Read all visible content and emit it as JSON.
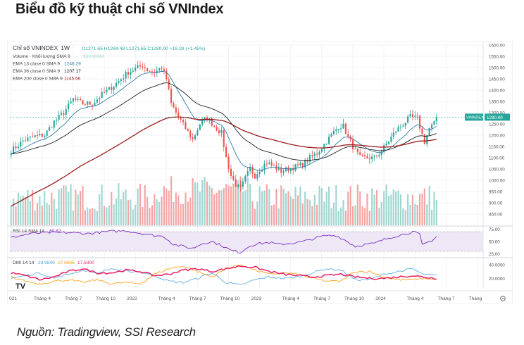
{
  "page": {
    "title": "Biểu đồ kỹ thuật chỉ số VNIndex",
    "source": "Nguồn: Tradingview, SSI Research"
  },
  "colors": {
    "up": "#26a69a",
    "down": "#ef5350",
    "vol_up": "#9fd6cf",
    "vol_down": "#f5a3a3",
    "ema13": "#2e7ba8",
    "ema36": "#222222",
    "ema200": "#9b1b1b",
    "rsi": "#7b2cbf",
    "rsi_band": "#ede7f6",
    "dmi_plus": "#4fa3e0",
    "dmi_minus": "#ff9800",
    "adx": "#e91e63",
    "price_tag": "#26a69a"
  },
  "chart_data": {
    "type": "candlestick",
    "interval": "1W",
    "symbol": "Chỉ số VNINDEX",
    "ohlc_text": "O1271.65 H1284.48 L1271.65 C1280.00 +18.28 (+1.45%)",
    "legend": [
      {
        "label": "Volume · Khối lượng SMA 9",
        "value": "930.906M"
      },
      {
        "label": "EMA 13 close 0 SMA 9",
        "value": "1246.29"
      },
      {
        "label": "EMA 36 close 0 SMA 9",
        "value": "1207.17"
      },
      {
        "label": "EMA 200 close 0 SMA 9",
        "value": "1145.66"
      }
    ],
    "price_axis": {
      "min": 800,
      "max": 1600,
      "ticks": [
        "1600.00",
        "1550.00",
        "1500.00",
        "1450.00",
        "1400.00",
        "1350.00",
        "1300.00",
        "1250.00",
        "1200.00",
        "1150.00",
        "1100.00",
        "1050.00",
        "1000.00",
        "950.00",
        "900.00",
        "850.00"
      ]
    },
    "last_price_label": "VNINDEX",
    "last_price": "1280.00",
    "x_labels": [
      "021",
      "Tháng 4",
      "Tháng 7",
      "Tháng 10",
      "2022",
      "Tháng 4",
      "Tháng 7",
      "Tháng 10",
      "2023",
      "Tháng 4",
      "Tháng 7",
      "Tháng 10",
      "2024",
      "Tháng 4",
      "Tháng 7",
      "Tháng"
    ],
    "x_label_weeks": [
      0,
      13,
      26,
      39,
      52,
      65,
      78,
      91,
      104,
      117,
      130,
      143,
      156,
      169,
      182,
      195
    ],
    "weeks_total": 198,
    "close_anchors": [
      [
        0,
        1130
      ],
      [
        5,
        1175
      ],
      [
        10,
        1195
      ],
      [
        14,
        1200
      ],
      [
        18,
        1260
      ],
      [
        22,
        1300
      ],
      [
        26,
        1360
      ],
      [
        30,
        1340
      ],
      [
        34,
        1340
      ],
      [
        38,
        1380
      ],
      [
        43,
        1420
      ],
      [
        46,
        1450
      ],
      [
        49,
        1480
      ],
      [
        52,
        1495
      ],
      [
        55,
        1510
      ],
      [
        57,
        1490
      ],
      [
        60,
        1480
      ],
      [
        63,
        1500
      ],
      [
        65,
        1450
      ],
      [
        67,
        1340
      ],
      [
        70,
        1280
      ],
      [
        73,
        1230
      ],
      [
        76,
        1180
      ],
      [
        79,
        1250
      ],
      [
        82,
        1280
      ],
      [
        85,
        1240
      ],
      [
        88,
        1210
      ],
      [
        90,
        1100
      ],
      [
        92,
        1020
      ],
      [
        94,
        980
      ],
      [
        96,
        960
      ],
      [
        98,
        1010
      ],
      [
        100,
        1050
      ],
      [
        102,
        1020
      ],
      [
        104,
        1050
      ],
      [
        107,
        1080
      ],
      [
        110,
        1060
      ],
      [
        113,
        1040
      ],
      [
        116,
        1050
      ],
      [
        119,
        1060
      ],
      [
        122,
        1070
      ],
      [
        125,
        1100
      ],
      [
        128,
        1120
      ],
      [
        131,
        1160
      ],
      [
        134,
        1200
      ],
      [
        137,
        1240
      ],
      [
        139,
        1240
      ],
      [
        141,
        1190
      ],
      [
        144,
        1130
      ],
      [
        146,
        1100
      ],
      [
        149,
        1100
      ],
      [
        152,
        1100
      ],
      [
        155,
        1130
      ],
      [
        158,
        1175
      ],
      [
        161,
        1220
      ],
      [
        164,
        1250
      ],
      [
        167,
        1280
      ],
      [
        170,
        1275
      ],
      [
        172,
        1200
      ],
      [
        173,
        1170
      ],
      [
        175,
        1230
      ],
      [
        177,
        1250
      ],
      [
        178,
        1280
      ]
    ],
    "volume_axis": {
      "ticks": []
    },
    "rsi": {
      "label": "RSI 14 SMA 14",
      "value": "60.82",
      "ticks": [
        "75.00",
        "50.00",
        "25.00"
      ],
      "upper": 70,
      "lower": 30,
      "anchors": [
        [
          0,
          58
        ],
        [
          8,
          66
        ],
        [
          16,
          68
        ],
        [
          24,
          68
        ],
        [
          32,
          66
        ],
        [
          40,
          70
        ],
        [
          48,
          72
        ],
        [
          55,
          66
        ],
        [
          60,
          62
        ],
        [
          64,
          60
        ],
        [
          68,
          44
        ],
        [
          72,
          40
        ],
        [
          76,
          36
        ],
        [
          80,
          46
        ],
        [
          84,
          50
        ],
        [
          88,
          42
        ],
        [
          92,
          32
        ],
        [
          96,
          28
        ],
        [
          100,
          42
        ],
        [
          104,
          46
        ],
        [
          108,
          48
        ],
        [
          112,
          44
        ],
        [
          116,
          46
        ],
        [
          120,
          48
        ],
        [
          124,
          52
        ],
        [
          128,
          58
        ],
        [
          132,
          62
        ],
        [
          136,
          62
        ],
        [
          140,
          52
        ],
        [
          144,
          40
        ],
        [
          148,
          44
        ],
        [
          152,
          46
        ],
        [
          156,
          54
        ],
        [
          160,
          60
        ],
        [
          164,
          64
        ],
        [
          168,
          70
        ],
        [
          171,
          64
        ],
        [
          172,
          42
        ],
        [
          174,
          48
        ],
        [
          176,
          52
        ],
        [
          178,
          60
        ]
      ]
    },
    "dmi": {
      "label": "DMI 14 14",
      "values": [
        "23.9849",
        "17.6845",
        "17.6300"
      ],
      "ticks": [
        "40.0000",
        "20.0000"
      ],
      "plus_anchors": [
        [
          0,
          20
        ],
        [
          6,
          24
        ],
        [
          12,
          28
        ],
        [
          18,
          20
        ],
        [
          24,
          26
        ],
        [
          30,
          32
        ],
        [
          36,
          28
        ],
        [
          42,
          34
        ],
        [
          48,
          30
        ],
        [
          54,
          30
        ],
        [
          60,
          24
        ],
        [
          66,
          16
        ],
        [
          72,
          14
        ],
        [
          78,
          20
        ],
        [
          84,
          28
        ],
        [
          90,
          14
        ],
        [
          96,
          10
        ],
        [
          102,
          18
        ],
        [
          108,
          22
        ],
        [
          114,
          20
        ],
        [
          120,
          22
        ],
        [
          126,
          28
        ],
        [
          132,
          34
        ],
        [
          138,
          32
        ],
        [
          144,
          18
        ],
        [
          150,
          18
        ],
        [
          156,
          26
        ],
        [
          162,
          30
        ],
        [
          168,
          34
        ],
        [
          172,
          26
        ],
        [
          178,
          24
        ]
      ],
      "minus_anchors": [
        [
          0,
          22
        ],
        [
          6,
          16
        ],
        [
          12,
          12
        ],
        [
          18,
          16
        ],
        [
          24,
          18
        ],
        [
          30,
          14
        ],
        [
          36,
          18
        ],
        [
          42,
          12
        ],
        [
          48,
          14
        ],
        [
          54,
          12
        ],
        [
          60,
          26
        ],
        [
          66,
          34
        ],
        [
          72,
          38
        ],
        [
          78,
          30
        ],
        [
          84,
          22
        ],
        [
          90,
          34
        ],
        [
          96,
          40
        ],
        [
          102,
          32
        ],
        [
          108,
          26
        ],
        [
          114,
          28
        ],
        [
          120,
          26
        ],
        [
          126,
          20
        ],
        [
          132,
          16
        ],
        [
          138,
          16
        ],
        [
          144,
          30
        ],
        [
          150,
          30
        ],
        [
          156,
          22
        ],
        [
          162,
          18
        ],
        [
          168,
          18
        ],
        [
          172,
          20
        ],
        [
          178,
          18
        ]
      ],
      "adx_anchors": [
        [
          0,
          28
        ],
        [
          6,
          24
        ],
        [
          12,
          18
        ],
        [
          18,
          22
        ],
        [
          24,
          30
        ],
        [
          30,
          34
        ],
        [
          36,
          28
        ],
        [
          42,
          28
        ],
        [
          48,
          32
        ],
        [
          54,
          30
        ],
        [
          60,
          24
        ],
        [
          66,
          26
        ],
        [
          72,
          32
        ],
        [
          78,
          34
        ],
        [
          84,
          30
        ],
        [
          90,
          34
        ],
        [
          96,
          38
        ],
        [
          102,
          36
        ],
        [
          108,
          30
        ],
        [
          114,
          26
        ],
        [
          120,
          24
        ],
        [
          126,
          22
        ],
        [
          132,
          24
        ],
        [
          138,
          26
        ],
        [
          144,
          22
        ],
        [
          150,
          20
        ],
        [
          156,
          20
        ],
        [
          162,
          22
        ],
        [
          168,
          24
        ],
        [
          172,
          22
        ],
        [
          178,
          20
        ]
      ]
    }
  }
}
